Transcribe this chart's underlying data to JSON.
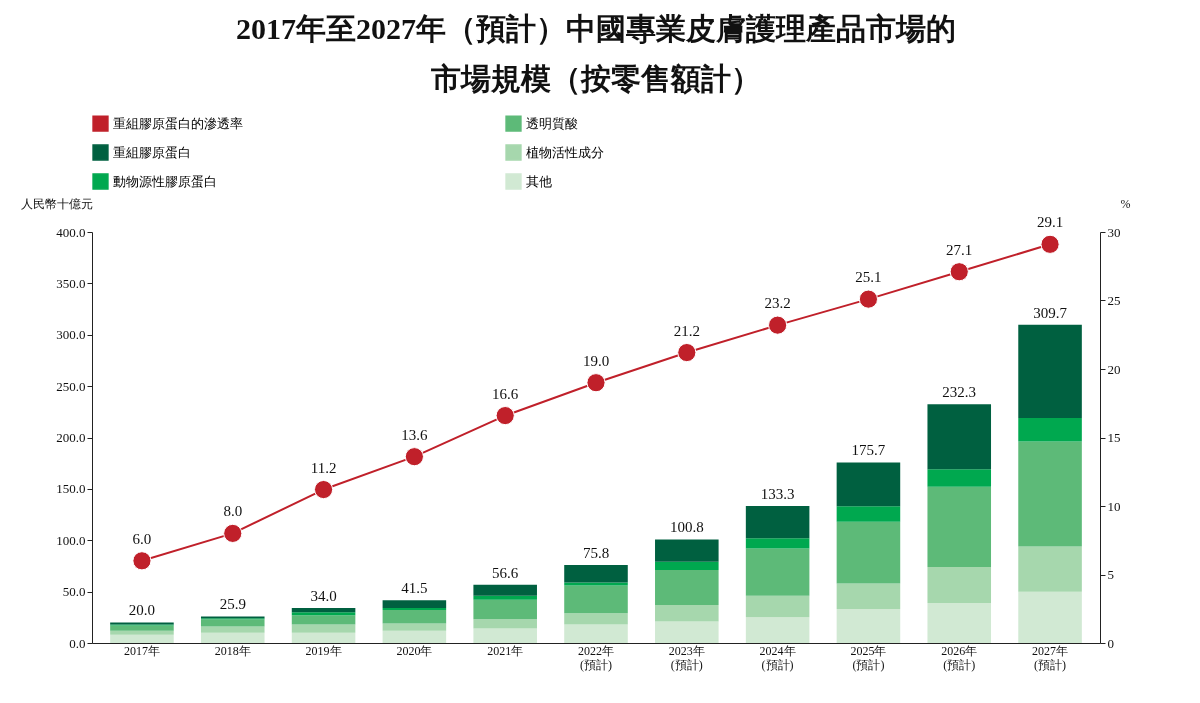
{
  "chart_data": {
    "type": "bar",
    "stacked": true,
    "title": "2017年至2027年（預計）中國專業皮膚護理產品市場的市場規模（按零售額計）",
    "ylabel": "人民幣十億元",
    "y2label": "%",
    "categories": [
      "2017年",
      "2018年",
      "2019年",
      "2020年",
      "2021年",
      "2022年\n(預計)",
      "2023年\n(預計)",
      "2024年\n(預計)",
      "2025年\n(預計)",
      "2026年\n(預計)",
      "2027年\n(預計)"
    ],
    "series": [
      {
        "name": "其他",
        "color": "#d1e9d3",
        "values": [
          8,
          10,
          10,
          12,
          14,
          18,
          21,
          25,
          33,
          39,
          50
        ]
      },
      {
        "name": "植物活性成分",
        "color": "#a6d7ad",
        "values": [
          4,
          6,
          8,
          7,
          9,
          11,
          16,
          21,
          25,
          35,
          44
        ]
      },
      {
        "name": "透明質酸",
        "color": "#5dba78",
        "values": [
          5,
          7,
          9,
          13,
          19,
          27,
          34,
          46,
          60,
          78,
          102
        ]
      },
      {
        "name": "動物源性膠原蛋白",
        "color": "#00a84f",
        "values": [
          1,
          1,
          3,
          2,
          4,
          3,
          8,
          10,
          15,
          17,
          23
        ]
      },
      {
        "name": "重組膠原蛋白",
        "color": "#006040",
        "values": [
          2.0,
          1.9,
          4.0,
          7.5,
          10.6,
          16.8,
          21.8,
          31.3,
          42.7,
          63.3,
          90.7
        ]
      },
      {
        "name": "重組膠原蛋白的滲透率",
        "type": "line",
        "axis": "y2",
        "color": "#c0202a",
        "marker": "circle",
        "values": [
          6.0,
          8.0,
          11.2,
          13.6,
          16.6,
          19.0,
          21.2,
          23.2,
          25.1,
          27.1,
          29.1
        ],
        "value_labels": [
          "6.0",
          "8.0",
          "11.2",
          "13.6",
          "16.6",
          "19.0",
          "21.2",
          "23.2",
          "25.1",
          "27.1",
          "29.1"
        ]
      }
    ],
    "totals": [
      "20.0",
      "25.9",
      "34.0",
      "41.5",
      "56.6",
      "75.8",
      "100.8",
      "133.3",
      "175.7",
      "232.3",
      "309.7"
    ],
    "ylim": [
      0,
      400
    ],
    "yticks": [
      {
        "value": 0,
        "label": "0.0"
      },
      {
        "value": 50,
        "label": "50.0"
      },
      {
        "value": 100,
        "label": "100.0"
      },
      {
        "value": 150,
        "label": "150.0"
      },
      {
        "value": 200,
        "label": "200.0"
      },
      {
        "value": 250,
        "label": "250.0"
      },
      {
        "value": 300,
        "label": "300.0"
      },
      {
        "value": 350,
        "label": "350.0"
      },
      {
        "value": 400,
        "label": "400.0"
      }
    ],
    "y2lim": [
      0,
      30
    ],
    "y2ticks": [
      0,
      5,
      10,
      15,
      20,
      25,
      30
    ],
    "legend": "top",
    "grid": false
  }
}
